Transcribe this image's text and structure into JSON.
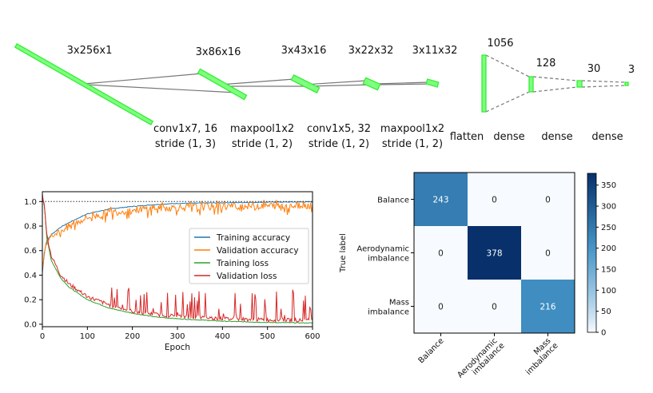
{
  "architecture": {
    "shapes": [
      "3x256x1",
      "3x86x16",
      "3x43x16",
      "3x22x32",
      "3x11x32",
      "1056",
      "128",
      "30",
      "3"
    ],
    "ops": [
      {
        "line1": "conv1x7, 16",
        "line2": "stride (1, 3)"
      },
      {
        "line1": "maxpool1x2",
        "line2": "stride (1, 2)"
      },
      {
        "line1": "conv1x5, 32",
        "line2": "stride (1, 2)"
      },
      {
        "line1": "maxpool1x2",
        "line2": "stride (1, 2)"
      }
    ],
    "flatten": "flatten",
    "dense": [
      "dense",
      "dense",
      "dense"
    ],
    "box_color": "#33ee33"
  },
  "chart_data": [
    {
      "type": "line",
      "xlabel": "Epoch",
      "xlim": [
        0,
        600
      ],
      "ylim": [
        -0.02,
        1.08
      ],
      "xticks": [
        "0",
        "100",
        "200",
        "300",
        "400",
        "500",
        "600"
      ],
      "yticks": [
        "0.0",
        "0.2",
        "0.4",
        "0.6",
        "0.8",
        "1.0"
      ],
      "reference_line": 1.0,
      "legend_position": "center-right",
      "series": [
        {
          "name": "Training accuracy",
          "color": "#1f77b4",
          "x": [
            0,
            5,
            10,
            20,
            40,
            60,
            100,
            150,
            200,
            250,
            300,
            400,
            500,
            600
          ],
          "values": [
            0.42,
            0.6,
            0.68,
            0.73,
            0.79,
            0.83,
            0.9,
            0.94,
            0.96,
            0.975,
            0.985,
            0.99,
            0.995,
            0.997
          ]
        },
        {
          "name": "Validation accuracy",
          "color": "#ff7f0e",
          "x": [
            0,
            5,
            10,
            20,
            40,
            60,
            100,
            150,
            200,
            250,
            300,
            400,
            500,
            600
          ],
          "values": [
            0.43,
            0.6,
            0.67,
            0.72,
            0.77,
            0.81,
            0.88,
            0.92,
            0.94,
            0.955,
            0.96,
            0.97,
            0.975,
            0.98
          ]
        },
        {
          "name": "Training loss",
          "color": "#2ca02c",
          "x": [
            0,
            5,
            10,
            20,
            40,
            60,
            100,
            150,
            200,
            250,
            300,
            400,
            500,
            600
          ],
          "values": [
            1.05,
            0.95,
            0.7,
            0.52,
            0.38,
            0.3,
            0.2,
            0.13,
            0.09,
            0.06,
            0.045,
            0.025,
            0.015,
            0.01
          ]
        },
        {
          "name": "Validation loss",
          "color": "#d62728",
          "x": [
            0,
            5,
            10,
            20,
            40,
            60,
            100,
            150,
            200,
            250,
            300,
            400,
            500,
            600
          ],
          "values": [
            1.05,
            0.95,
            0.72,
            0.55,
            0.4,
            0.32,
            0.22,
            0.15,
            0.1,
            0.075,
            0.06,
            0.04,
            0.03,
            0.025
          ]
        }
      ]
    },
    {
      "type": "heatmap",
      "ylabel": "True label",
      "row_labels": [
        [
          "Balance"
        ],
        [
          "Aerodynamic",
          "imbalance"
        ],
        [
          "Mass",
          "imbalance"
        ]
      ],
      "col_labels": [
        [
          "Balance"
        ],
        [
          "Aerodynamic",
          "imbalance"
        ],
        [
          "Mass",
          "imbalance"
        ]
      ],
      "matrix": [
        [
          243,
          0,
          0
        ],
        [
          0,
          378,
          0
        ],
        [
          0,
          0,
          216
        ]
      ],
      "vmin": 0,
      "vmax": 378,
      "colorbar_ticks": [
        "0",
        "50",
        "100",
        "150",
        "200",
        "250",
        "300",
        "350"
      ],
      "colormap": [
        "#f7fbff",
        "#08306b"
      ]
    }
  ]
}
